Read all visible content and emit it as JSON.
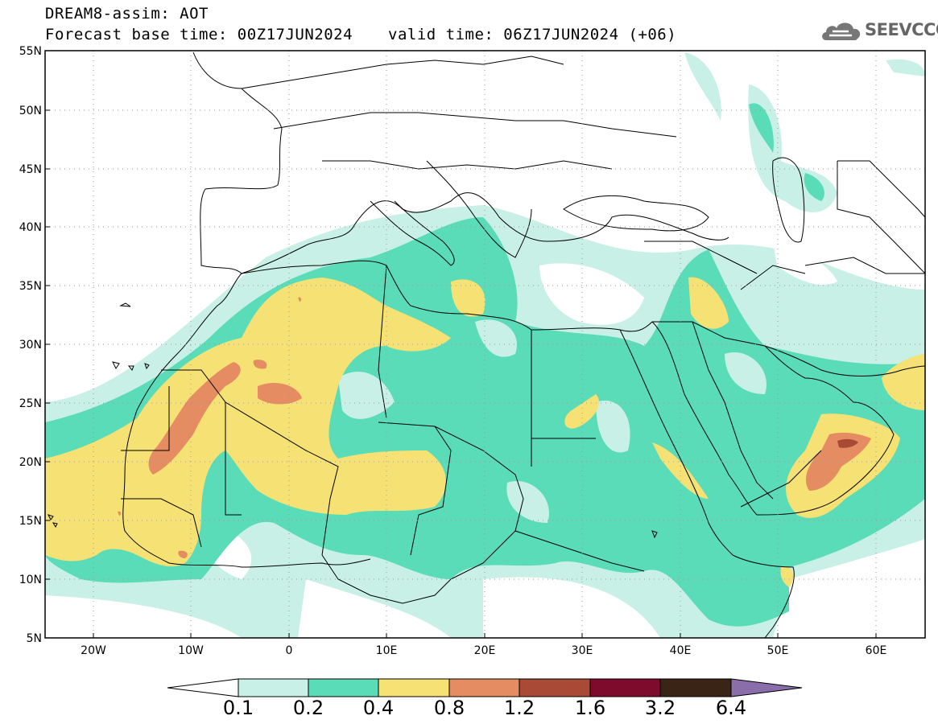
{
  "header": {
    "model_line": "DREAM8-assim: AOT",
    "base_time": "Forecast base time: 00Z17JUN2024",
    "valid_time": "valid time: 06Z17JUN2024 (+06)",
    "logo_text": "SEEVCCC"
  },
  "axes": {
    "lat_labels": [
      "55N",
      "50N",
      "45N",
      "40N",
      "35N",
      "30N",
      "25N",
      "20N",
      "15N",
      "10N",
      "5N"
    ],
    "lon_labels": [
      "20W",
      "10W",
      "0",
      "10E",
      "20E",
      "30E",
      "40E",
      "50E",
      "60E"
    ]
  },
  "colorbar": {
    "labels": [
      "0.1",
      "0.2",
      "0.4",
      "0.8",
      "1.2",
      "1.6",
      "3.2",
      "6.4"
    ],
    "colors": [
      "#c8f0e6",
      "#5adcb8",
      "#f5e174",
      "#e58c62",
      "#a84a36",
      "#7e0a2c",
      "#3a2416",
      "#8a6eaa"
    ],
    "under_color": "#ffffff"
  },
  "map_colors": {
    "land_outline": "#000000",
    "grid": "#9a9a9a"
  }
}
